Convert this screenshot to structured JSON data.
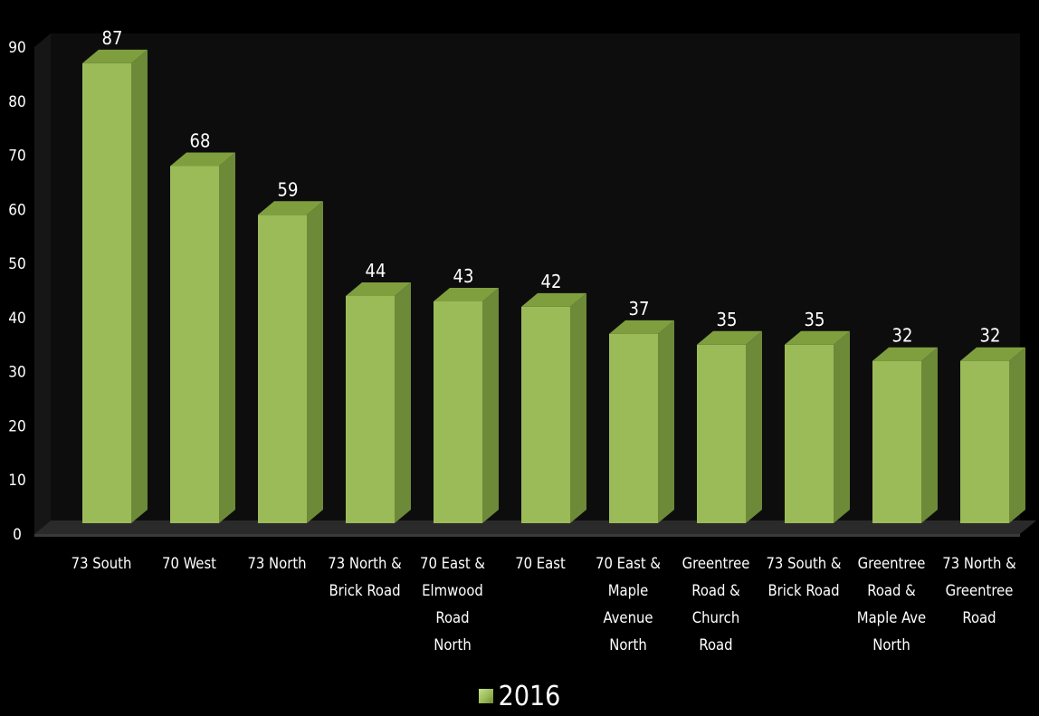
{
  "chart_data": {
    "type": "bar",
    "style": "3d-column",
    "title": "",
    "xlabel": "",
    "ylabel": "",
    "ylim": [
      0,
      90
    ],
    "yticks": [
      0,
      10,
      20,
      30,
      40,
      50,
      60,
      70,
      80,
      90
    ],
    "grid": false,
    "legend_position": "bottom",
    "categories": [
      "73 South",
      "70 West",
      "73 North",
      "73 North & Brick Road",
      "70 East & Elmwood Road North",
      "70 East",
      "70 East & Maple Avenue North",
      "Greentree Road & Church Road",
      "73 South & Brick Road",
      "Greentree Road & Maple Ave North",
      "73 North & Greentree Road"
    ],
    "category_lines": [
      [
        "73 South"
      ],
      [
        "70 West"
      ],
      [
        "73 North"
      ],
      [
        "73 North &",
        "Brick Road"
      ],
      [
        "70 East &",
        "Elmwood",
        "Road",
        "North"
      ],
      [
        "70 East"
      ],
      [
        "70 East &",
        "Maple",
        "Avenue",
        "North"
      ],
      [
        "Greentree",
        "Road &",
        "Church",
        "Road"
      ],
      [
        "73 South &",
        "Brick Road"
      ],
      [
        "Greentree",
        "Road &",
        "Maple Ave",
        "North"
      ],
      [
        "73 North &",
        "Greentree",
        "Road"
      ]
    ],
    "series": [
      {
        "name": "2016",
        "color": "#9bbb59",
        "values": [
          87,
          68,
          59,
          44,
          43,
          42,
          37,
          35,
          35,
          32,
          32
        ]
      }
    ]
  },
  "colors": {
    "background": "#000000",
    "bar_front": "#9bbb59",
    "bar_side": "#6d8a38",
    "bar_top": "#7f9f3f",
    "wall": "#0d0d0d",
    "floor": "#2a2a2a",
    "text": "#ffffff"
  }
}
